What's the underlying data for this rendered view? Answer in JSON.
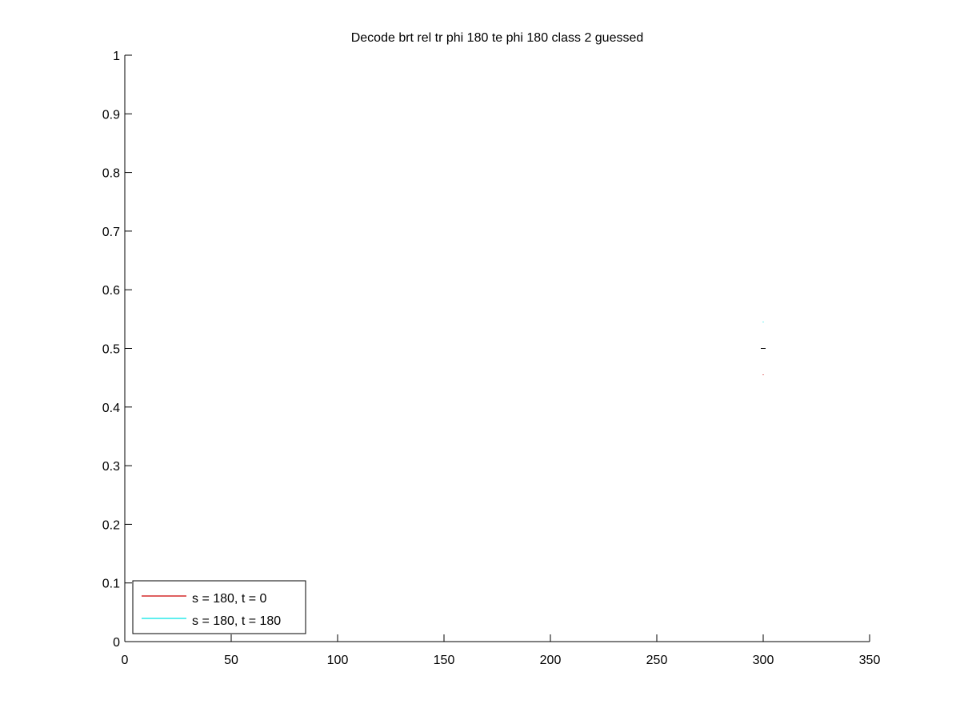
{
  "chart_data": {
    "type": "line",
    "title": "Decode brt rel tr phi 180 te phi 180  class 2 guessed",
    "xlabel": "",
    "ylabel": "",
    "xlim": [
      0,
      350
    ],
    "ylim": [
      0,
      1
    ],
    "xticks": [
      0,
      50,
      100,
      150,
      200,
      250,
      300,
      350
    ],
    "yticks": [
      0,
      0.1,
      0.2,
      0.3,
      0.4,
      0.5,
      0.6,
      0.7,
      0.8,
      0.9,
      1
    ],
    "xtick_labels": [
      "0",
      "50",
      "100",
      "150",
      "200",
      "250",
      "300",
      "350"
    ],
    "ytick_labels": [
      "0",
      "0.1",
      "0.2",
      "0.3",
      "0.4",
      "0.5",
      "0.6",
      "0.7",
      "0.8",
      "0.9",
      "1"
    ],
    "grid": false,
    "legend_position": "bottom-left",
    "series": [
      {
        "name": "s = 180, t = 0",
        "color": "#cc0000",
        "x": [
          300
        ],
        "y": [
          0.455
        ]
      },
      {
        "name": "s = 180, t = 180",
        "color": "#00e5e5",
        "x": [
          300
        ],
        "y": [
          0.545
        ]
      }
    ],
    "marker_color": "#000000",
    "marker": {
      "x": 300,
      "y": 0.5
    }
  }
}
